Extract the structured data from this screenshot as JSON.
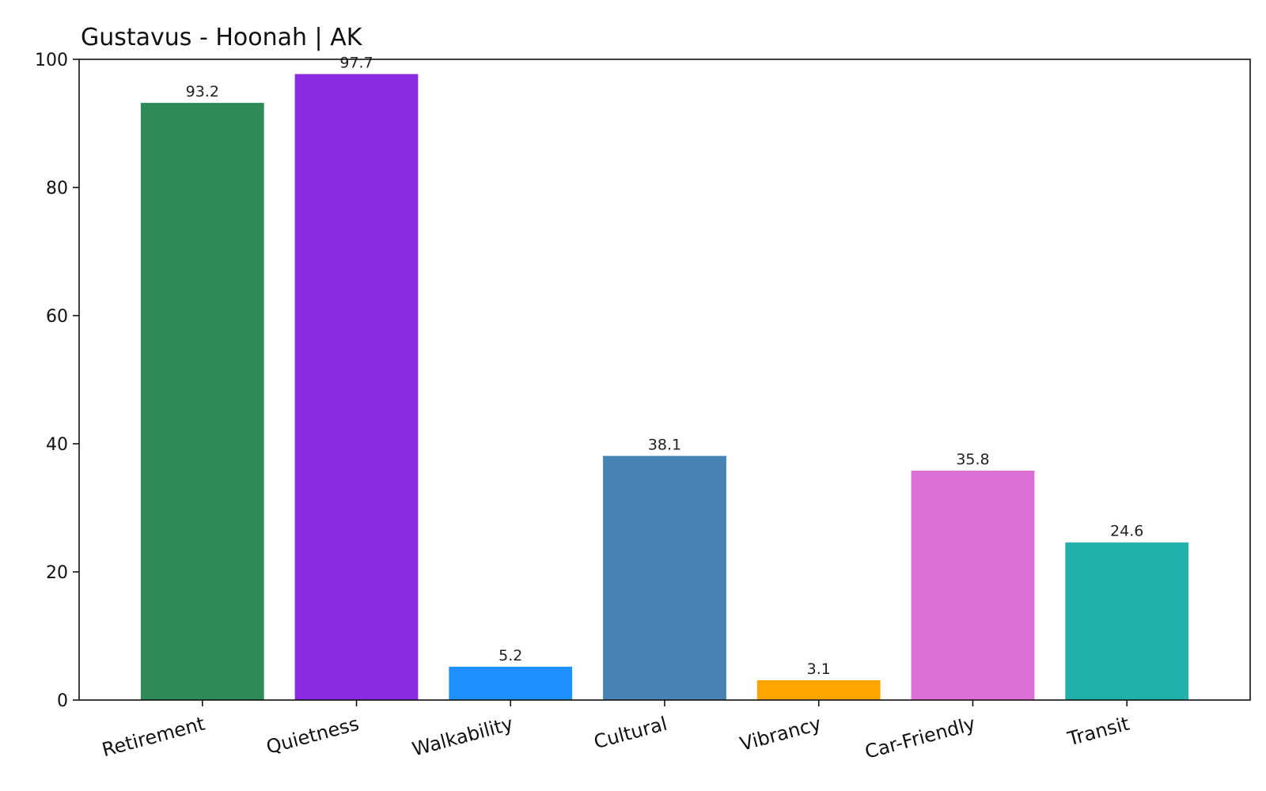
{
  "chart_data": {
    "type": "bar",
    "title": "Gustavus - Hoonah | AK",
    "xlabel": "",
    "ylabel": "",
    "categories": [
      "Retirement",
      "Quietness",
      "Walkability",
      "Cultural",
      "Vibrancy",
      "Car-Friendly",
      "Transit"
    ],
    "values": [
      93.2,
      97.7,
      5.2,
      38.1,
      3.1,
      35.8,
      24.6
    ],
    "value_labels": [
      "93.2",
      "97.7",
      "5.2",
      "38.1",
      "3.1",
      "35.8",
      "24.6"
    ],
    "colors": [
      "#2e8b57",
      "#8a2be2",
      "#1e90ff",
      "#4682b4",
      "#ffa500",
      "#da70d6",
      "#20b2aa"
    ],
    "ylim": [
      0,
      100
    ],
    "yticks": [
      0,
      20,
      40,
      60,
      80,
      100
    ],
    "ytick_labels": [
      "0",
      "20",
      "40",
      "60",
      "80",
      "100"
    ],
    "grid": false,
    "legend": "none"
  }
}
